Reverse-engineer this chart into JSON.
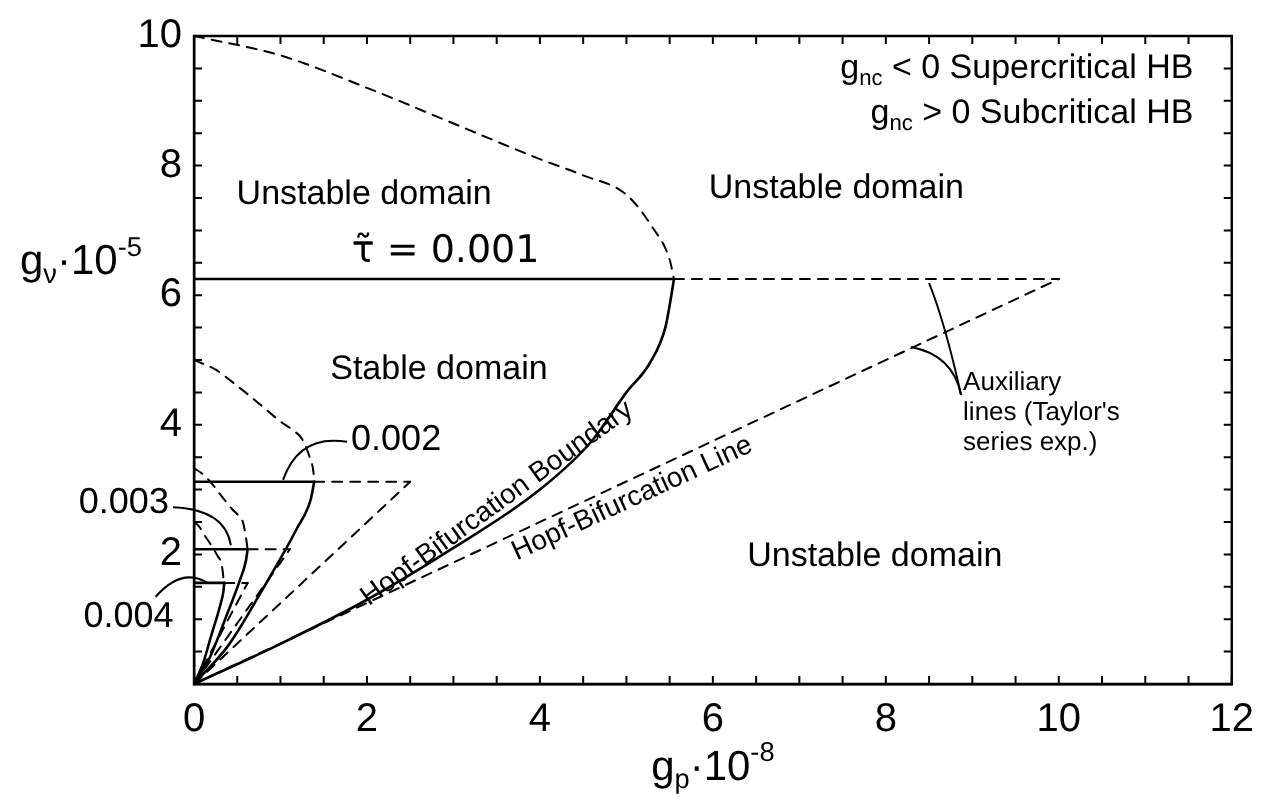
{
  "chart_data": {
    "type": "line",
    "xlabel": "g$_{p}$·10$^{-8}$",
    "ylabel": "g$_{ν}$·10$^{-5}$",
    "marker": "none",
    "xlim": [
      0,
      12
    ],
    "xticks": [
      0,
      {
        "value": 0.5,
        "label": null
      },
      {
        "value": 1,
        "label": null
      },
      {
        "value": 1.5,
        "label": null
      },
      2,
      {
        "value": 2.5,
        "label": null
      },
      {
        "value": 3,
        "label": null
      },
      {
        "value": 3.5,
        "label": null
      },
      4,
      {
        "value": 4.5,
        "label": null
      },
      {
        "value": 5,
        "label": null
      },
      {
        "value": 5.5,
        "label": null
      },
      6,
      {
        "value": 6.5,
        "label": null
      },
      {
        "value": 7,
        "label": null
      },
      {
        "value": 7.5,
        "label": null
      },
      8,
      {
        "value": 8.5,
        "label": null
      },
      {
        "value": 9,
        "label": null
      },
      {
        "value": 9.5,
        "label": null
      },
      10,
      {
        "value": 10.5,
        "label": null
      },
      {
        "value": 11,
        "label": null
      },
      {
        "value": 11.5,
        "label": null
      },
      12
    ],
    "ylim": [
      0,
      10
    ],
    "yticks": [
      {
        "value": 0,
        "label": null
      },
      {
        "value": 0.5,
        "label": null
      },
      {
        "value": 1,
        "label": null
      },
      {
        "value": 1.5,
        "label": null
      },
      2,
      {
        "value": 2.5,
        "label": null
      },
      {
        "value": 3,
        "label": null
      },
      {
        "value": 3.5,
        "label": null
      },
      4,
      {
        "value": 4.5,
        "label": null
      },
      {
        "value": 5,
        "label": null
      },
      {
        "value": 5.5,
        "label": null
      },
      6,
      {
        "value": 6.5,
        "label": null
      },
      {
        "value": 7,
        "label": null
      },
      {
        "value": 7.5,
        "label": null
      },
      8,
      {
        "value": 8.5,
        "label": null
      },
      {
        "value": 9,
        "label": null
      },
      {
        "value": 9.5,
        "label": null
      },
      10
    ],
    "series": [
      {
        "type": "line",
        "color": "#000000",
        "line_style": "solid",
        "x": [
          0,
          1,
          2,
          3,
          4,
          4.6,
          5,
          5.27,
          5.45,
          5.52,
          5.55
        ],
        "values": [
          0,
          0.62,
          1.3,
          2.1,
          3,
          3.75,
          4.5,
          4.95,
          5.5,
          6,
          6.25
        ]
      },
      {
        "type": "line",
        "color": "#000000",
        "line_style": "dashed",
        "x": [
          0,
          1,
          2,
          3,
          4,
          4.5,
          5,
          5.3,
          5.5,
          5.55
        ],
        "values": [
          10,
          9.7,
          9.2,
          8.65,
          8.1,
          7.85,
          7.55,
          7.05,
          6.55,
          6.25
        ]
      },
      {
        "type": "line",
        "color": "#000000",
        "line_style": "solid",
        "x": [
          0,
          5.55
        ],
        "values": [
          6.25,
          6.25
        ]
      },
      {
        "type": "line",
        "color": "#000000",
        "line_style": "dashed",
        "x": [
          5.55,
          10
        ],
        "values": [
          6.25,
          6.25
        ]
      },
      {
        "type": "line",
        "color": "#000000",
        "line_style": "dashed",
        "x": [
          0,
          10
        ],
        "values": [
          0,
          6.25
        ]
      },
      {
        "type": "line",
        "color": "#000000",
        "line_style": "solid",
        "x": [
          0,
          0.4,
          0.81,
          1.19,
          1.35,
          1.39
        ],
        "values": [
          0,
          0.6,
          1.5,
          2.4,
          2.85,
          3.12
        ]
      },
      {
        "type": "line",
        "color": "#000000",
        "line_style": "dashed",
        "x": [
          0,
          0.25,
          0.5,
          0.75,
          1,
          1.13,
          1.25,
          1.33,
          1.38,
          1.39
        ],
        "values": [
          5,
          4.85,
          4.6,
          4.33,
          4.05,
          3.93,
          3.78,
          3.53,
          3.28,
          3.12
        ]
      },
      {
        "type": "line",
        "color": "#000000",
        "line_style": "solid",
        "x": [
          0,
          1.39
        ],
        "values": [
          3.12,
          3.12
        ]
      },
      {
        "type": "line",
        "color": "#000000",
        "line_style": "dashed",
        "x": [
          1.39,
          2.5
        ],
        "values": [
          3.12,
          3.12
        ]
      },
      {
        "type": "line",
        "color": "#000000",
        "line_style": "dashed",
        "x": [
          0,
          2.5
        ],
        "values": [
          0,
          3.12
        ]
      },
      {
        "type": "line",
        "color": "#000000",
        "line_style": "solid",
        "x": [
          0,
          0.18,
          0.36,
          0.53,
          0.6,
          0.62
        ],
        "values": [
          0,
          0.4,
          1,
          1.6,
          1.9,
          2.08
        ]
      },
      {
        "type": "line",
        "color": "#000000",
        "line_style": "dashed",
        "x": [
          0,
          0.11,
          0.22,
          0.33,
          0.44,
          0.5,
          0.56,
          0.59,
          0.61,
          0.62
        ],
        "values": [
          3.33,
          3.23,
          3.07,
          2.88,
          2.7,
          2.62,
          2.52,
          2.35,
          2.18,
          2.08
        ]
      },
      {
        "type": "line",
        "color": "#000000",
        "line_style": "solid",
        "x": [
          0,
          0.62
        ],
        "values": [
          2.08,
          2.08
        ]
      },
      {
        "type": "line",
        "color": "#000000",
        "line_style": "dashed",
        "x": [
          0.62,
          1.11
        ],
        "values": [
          2.08,
          2.08
        ]
      },
      {
        "type": "line",
        "color": "#000000",
        "line_style": "dashed",
        "x": [
          0,
          1.11
        ],
        "values": [
          0,
          2.08
        ]
      },
      {
        "type": "line",
        "color": "#000000",
        "line_style": "solid",
        "x": [
          0,
          0.1,
          0.2,
          0.3,
          0.34,
          0.35
        ],
        "values": [
          0,
          0.3,
          0.75,
          1.2,
          1.43,
          1.56
        ]
      },
      {
        "type": "line",
        "color": "#000000",
        "line_style": "dashed",
        "x": [
          0,
          0.06,
          0.12,
          0.19,
          0.25,
          0.28,
          0.31,
          0.33,
          0.34,
          0.35
        ],
        "values": [
          2.5,
          2.43,
          2.3,
          2.16,
          2.03,
          1.96,
          1.89,
          1.76,
          1.64,
          1.56
        ]
      },
      {
        "type": "line",
        "color": "#000000",
        "line_style": "solid",
        "x": [
          0,
          0.35
        ],
        "values": [
          1.56,
          1.56
        ]
      },
      {
        "type": "line",
        "color": "#000000",
        "line_style": "dashed",
        "x": [
          0.35,
          0.62
        ],
        "values": [
          1.56,
          1.56
        ]
      },
      {
        "type": "line",
        "color": "#000000",
        "line_style": "dashed",
        "x": [
          0,
          0.62
        ],
        "values": [
          0,
          1.56
        ]
      }
    ],
    "annotations": [
      "Unstable domain",
      "Unstable domain",
      "Unstable domain",
      "Stable domain",
      {
        "text": "τ̃ = 0.001",
        "x": 2.91,
        "y": 6.25
      },
      {
        "text": "0.002",
        "x": 1.03,
        "y": 3.12
      },
      {
        "text": "0.003",
        "x": 0.45,
        "y": 2.08
      },
      {
        "text": "0.004",
        "x": 0.18,
        "y": 1.56
      },
      {
        "text": "Hopf-Bifurcation Boundary",
        "x": 3.6,
        "y": 2.55
      },
      {
        "text": "Hopf-Bifurcation Line",
        "x": 5,
        "y": 3.12
      },
      {
        "text": "Auxiliary lines (Taylor's series exp.)",
        "x": 8.5,
        "y": 6.25
      },
      "g$_{nc}$ < 0 Supercritical HB",
      "g$_{nc}$ > 0 Subcritical HB"
    ]
  }
}
